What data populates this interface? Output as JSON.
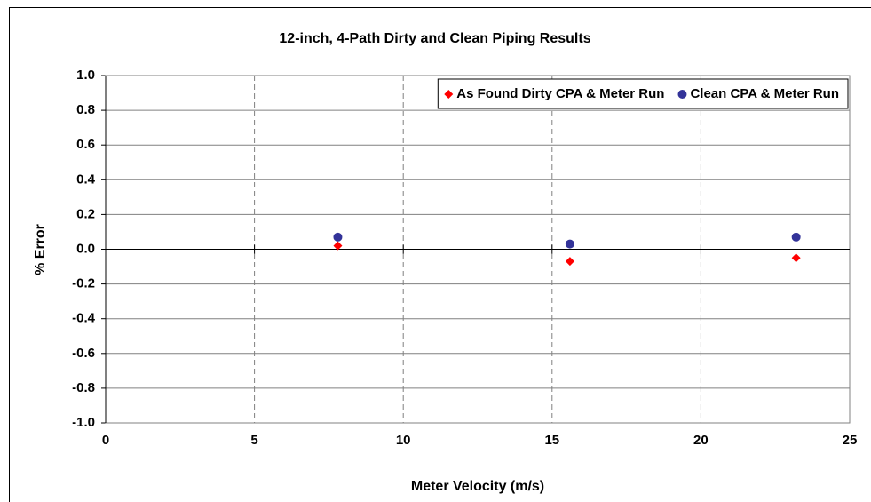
{
  "chart_data": {
    "type": "scatter",
    "title": "12-inch, 4-Path Dirty and Clean Piping Results",
    "xlabel": "Meter Velocity (m/s)",
    "ylabel": "% Error",
    "xlim": [
      0,
      25
    ],
    "xticks": [
      0,
      5,
      10,
      15,
      20,
      25
    ],
    "ylim": [
      -1,
      1
    ],
    "yticks": [
      {
        "value": -1,
        "label": "-1.0"
      },
      -0.8,
      -0.6,
      -0.4,
      -0.2,
      {
        "value": 0,
        "label": "0.0"
      },
      0.2,
      0.4,
      0.6,
      0.8,
      {
        "value": 1,
        "label": "1.0"
      }
    ],
    "legend": "upper right",
    "series": [
      {
        "name": "As Found Dirty CPA & Meter Run",
        "color": "#ff0000",
        "marker": "diamond",
        "x": [
          7.8,
          15.6,
          23.2
        ],
        "values": [
          0.02,
          -0.07,
          -0.05
        ]
      },
      {
        "name": "Clean CPA & Meter Run",
        "color": "#333399",
        "marker": "circle",
        "x": [
          7.8,
          15.6,
          23.2
        ],
        "values": [
          0.07,
          0.03,
          0.07
        ]
      }
    ]
  }
}
